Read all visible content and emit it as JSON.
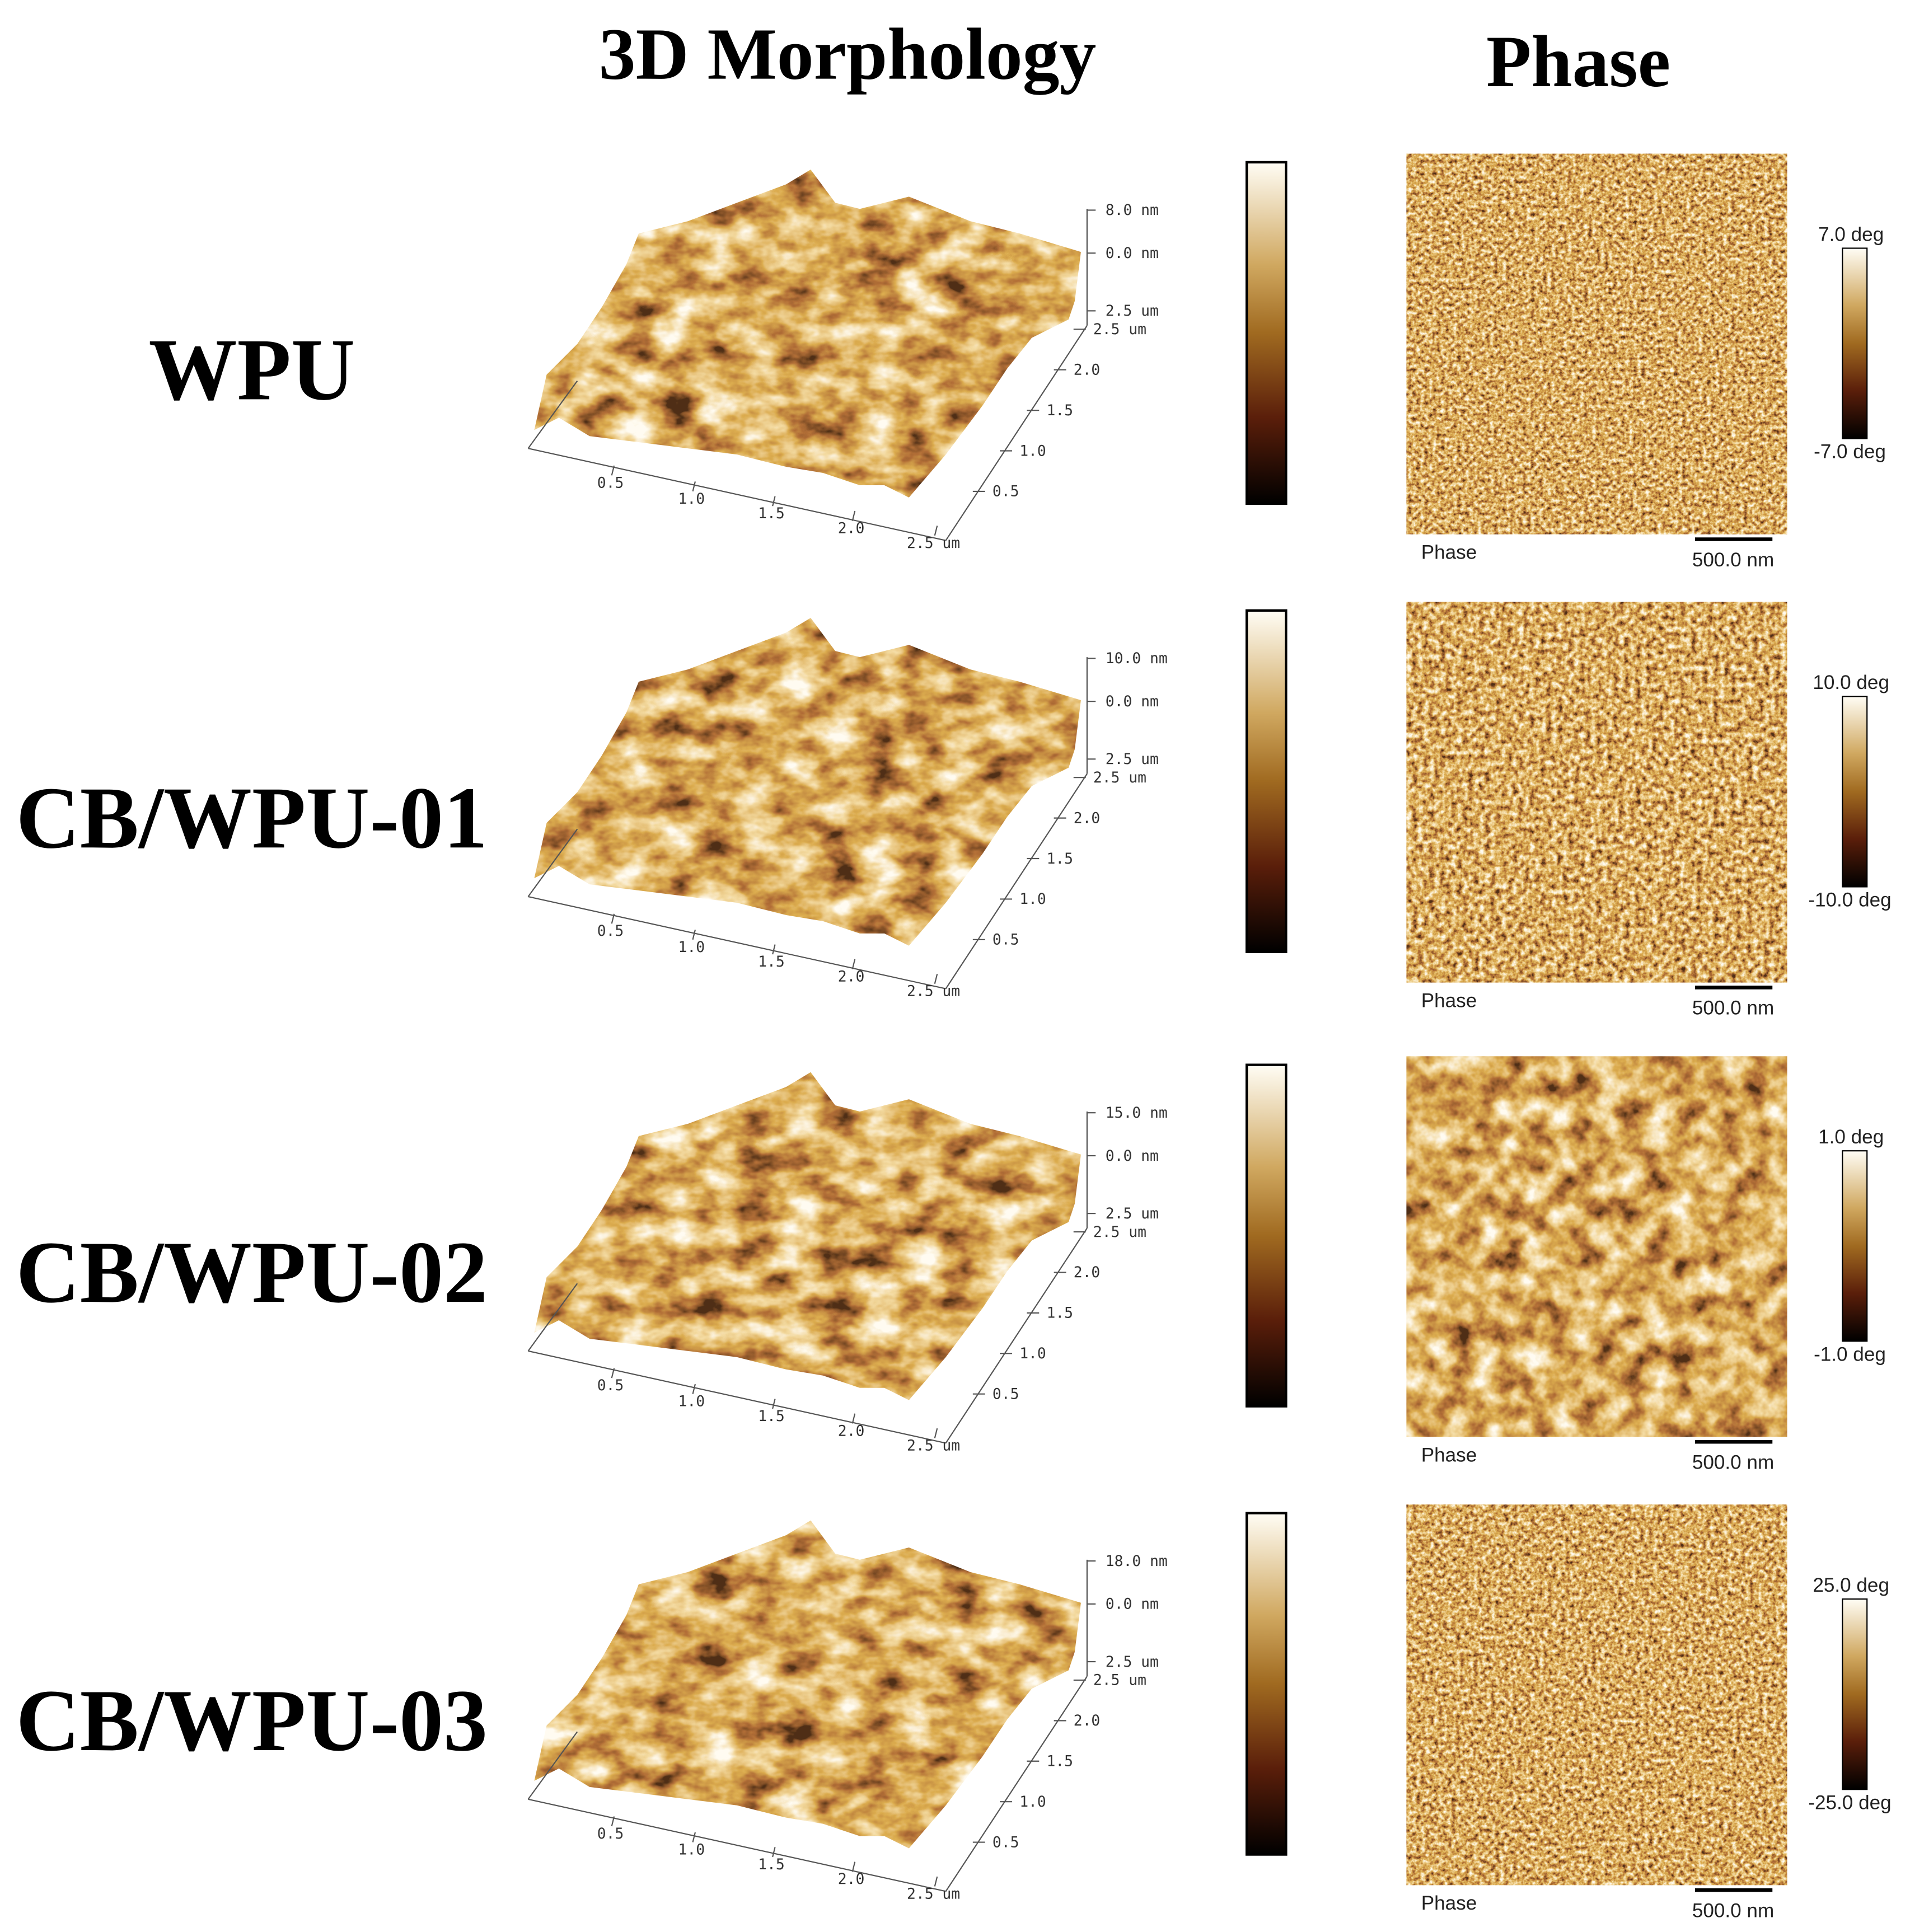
{
  "header": {
    "morphology": "3D Morphology",
    "phase": "Phase"
  },
  "axes": {
    "x_ticks": [
      "0.5",
      "1.0",
      "1.5",
      "2.0",
      "2.5 um"
    ],
    "y_ticks": [
      "0.5",
      "1.0",
      "1.5",
      "2.0",
      "2.5 um"
    ],
    "z_zero": "0.0 nm",
    "z_base": "2.5 um"
  },
  "phase_panel": {
    "label": "Phase",
    "scale_bar": "500.0 nm"
  },
  "rows": [
    {
      "label": "WPU",
      "z_max": "8.0 nm",
      "phase_max": "7.0 deg",
      "phase_min": "-7.0 deg"
    },
    {
      "label": "CB/WPU-01",
      "z_max": "10.0 nm",
      "phase_max": "10.0 deg",
      "phase_min": "-10.0 deg"
    },
    {
      "label": "CB/WPU-02",
      "z_max": "15.0 nm",
      "phase_max": "1.0 deg",
      "phase_min": "-1.0 deg"
    },
    {
      "label": "CB/WPU-03",
      "z_max": "18.0 nm",
      "phase_max": "25.0 deg",
      "phase_min": "-25.0 deg"
    }
  ]
}
